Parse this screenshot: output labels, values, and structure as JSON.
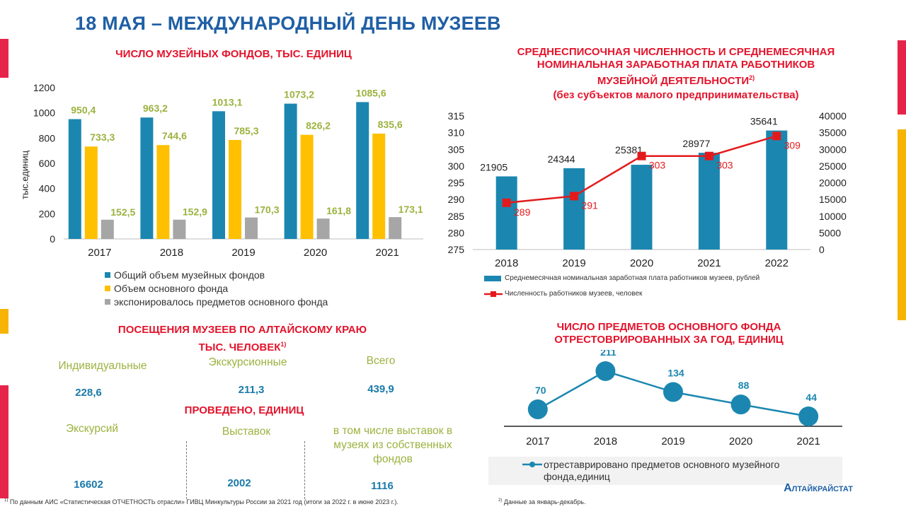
{
  "header": {
    "title": "18 МАЯ – МЕЖДУНАРОДНЫЙ ДЕНЬ МУЗЕЕВ"
  },
  "accents": {
    "red": "#e6244a",
    "yellow": "#f6b400"
  },
  "funds_chart": {
    "heading": "ЧИСЛО МУЗЕЙНЫХ ФОНДОВ, ТЫС. ЕДИНИЦ",
    "ylabel": "тыс.единиц",
    "legend": [
      "Общий объем музейных фондов",
      "Объем основного фонда",
      "экспонировалось предметов основного фонда"
    ]
  },
  "salary_chart": {
    "heading_line1": "СРЕДНЕСПИСОЧНАЯ ЧИСЛЕННОСТЬ И СРЕДНЕМЕСЯЧНАЯ",
    "heading_line2": "НОМИНАЛЬНАЯ ЗАРАБОТНАЯ ПЛАТА РАБОТНИКОВ",
    "heading_line3": "МУЗЕЙНОЙ ДЕЯТЕЛЬНОСТИ",
    "heading_sup": "2)",
    "subheading": "(без субъектов малого предпринимательства)",
    "legend_bar": "Среднемесячная номинальная заработная плата работников музеев, рублей",
    "legend_line": "Численность работников музеев, человек"
  },
  "visits": {
    "heading_line1": "ПОСЕЩЕНИЯ МУЗЕЕВ ПО АЛТАЙСКОМУ КРАЮ",
    "heading_line2": "ТЫС. ЧЕЛОВЕК",
    "heading_sup": "1)",
    "labels": [
      "Индивидуальные",
      "Экскурсионные",
      "Всего"
    ],
    "values": [
      "228,6",
      "211,3",
      "439,9"
    ]
  },
  "held": {
    "heading": "ПРОВЕДЕНО, ЕДИНИЦ",
    "labels": [
      "Экскурсий",
      "Выставок",
      "в том числе выставок в музеях из собственных фондов"
    ],
    "values": [
      "16602",
      "2002",
      "1116"
    ]
  },
  "restored_chart": {
    "heading_line1": "ЧИСЛО ПРЕДМЕТОВ ОСНОВНОГО ФОНДА",
    "heading_line2": "ОТРЕСТОВРИРОВАННЫХ ЗА ГОД, ЕДИНИЦ",
    "legend": "отреставрировано предметов основного музейного фонда,единиц"
  },
  "footer": {
    "note1_sup": "1)",
    "note1": "По данным АИС «Статистическая ОТЧЕТНОСТЬ отрасли» ГИВЦ Минкультуры России за 2021 год (итоги за 2022 г. в июне 2023 г.).",
    "note2_sup": "2)",
    "note2": "Данные за январь-декабрь.",
    "brand": "Алтайкрайстат"
  },
  "chart_data": [
    {
      "type": "bar",
      "categories": [
        "2017",
        "2018",
        "2019",
        "2020",
        "2021"
      ],
      "series": [
        {
          "name": "Общий объем музейных фондов",
          "values": [
            950.4,
            963.2,
            1013.1,
            1073.2,
            1085.6
          ],
          "labels": [
            "950,4",
            "963,2",
            "1013,1",
            "1073,2",
            "1085,6"
          ],
          "color": "#1b87b0"
        },
        {
          "name": "Объем основного фонда",
          "values": [
            733.3,
            744.6,
            785.3,
            826.2,
            835.6
          ],
          "labels": [
            "733,3",
            "744,6",
            "785,3",
            "826,2",
            "835,6"
          ],
          "color": "#ffc000"
        },
        {
          "name": "экспонировалось предметов основного фонда",
          "values": [
            152.5,
            152.9,
            170.3,
            161.8,
            173.1
          ],
          "labels": [
            "152,5",
            "152,9",
            "170,3",
            "161,8",
            "173,1"
          ],
          "color": "#a6a6a6"
        }
      ],
      "ylim": [
        0,
        1200
      ],
      "yticks": [
        0,
        200,
        400,
        600,
        800,
        1000,
        1200
      ],
      "ylabel": "тыс.единиц",
      "label_color": "#9bb23f"
    },
    {
      "type": "bar",
      "categories": [
        "2018",
        "2019",
        "2020",
        "2021",
        "2022"
      ],
      "bar_series": {
        "name": "Среднемесячная номинальная заработная плата работников музеев, рублей",
        "values": [
          21905,
          24344,
          25381,
          28977,
          35641
        ],
        "color": "#1b87b0"
      },
      "line_series": {
        "name": "Численность работников музеев, человек",
        "values": [
          289,
          291,
          303,
          303,
          309
        ],
        "color": "#e31a1c"
      },
      "left_axis": {
        "min": 275,
        "max": 315,
        "ticks": [
          275,
          280,
          285,
          290,
          295,
          300,
          305,
          310,
          315
        ]
      },
      "right_axis": {
        "min": 0,
        "max": 40000,
        "ticks": [
          0,
          5000,
          10000,
          15000,
          20000,
          25000,
          30000,
          35000,
          40000
        ]
      }
    },
    {
      "type": "line",
      "categories": [
        "2017",
        "2018",
        "2019",
        "2020",
        "2021"
      ],
      "series": [
        {
          "name": "отреставрировано предметов основного музейного фонда,единиц",
          "values": [
            70,
            211,
            134,
            88,
            44
          ],
          "color": "#1b87b0"
        }
      ]
    }
  ]
}
